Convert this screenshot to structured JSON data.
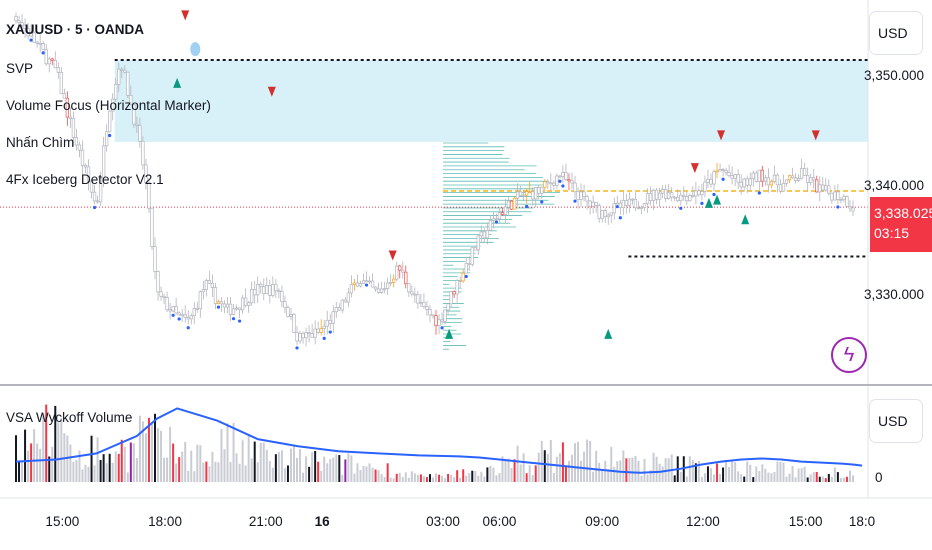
{
  "legend": {
    "symbol": "XAUUSD · 5 · OANDA",
    "indicators": [
      "SVP",
      "Volume Focus (Horizontal Marker)",
      "Nhấn Chìm",
      "4Fx Iceberg Detector V2.1"
    ]
  },
  "price_axis": {
    "currency": "USD",
    "current_price": "3,338.025",
    "countdown": "03:15"
  },
  "volume_pane": {
    "title": "VSA Wyckoff Volume",
    "currency": "USD",
    "zero_label": "0"
  },
  "colors": {
    "up": "#26a69a",
    "down": "#ef5350",
    "candle": "#b2b5be",
    "zone": "#d8f1f8",
    "poc": "#f2b320",
    "vol_ma": "#2962ff",
    "bar_red": "#f23645",
    "bar_purple": "#8e24aa",
    "bar_black": "#131722",
    "bar_grey": "#c9ccd3"
  },
  "chart_data": [
    {
      "type": "candlestick",
      "symbol": "XAUUSD",
      "timeframe": "5",
      "source": "OANDA",
      "ylim": [
        3322,
        3357
      ],
      "x_ticks": [
        "15:00",
        "18:00",
        "21:00",
        "16",
        "03:00",
        "06:00",
        "09:00",
        "12:00",
        "15:00",
        "18:0"
      ],
      "y_ticks": [
        "3,330.000",
        "3,340.000",
        "3,350.000"
      ],
      "y_tick_values": [
        3330,
        3340,
        3350
      ],
      "path_x": [
        0.0,
        1.0,
        1.4,
        2.0,
        2.3,
        2.6,
        3.0,
        3.2,
        3.5,
        4.0,
        4.3,
        4.7,
        5.2,
        5.5,
        6.0,
        6.5,
        6.8,
        7.0,
        7.5,
        8.0,
        8.5,
        9.0,
        9.5,
        10.0,
        10.5,
        11.0,
        11.5,
        12.0,
        12.5,
        13.0,
        13.5,
        14.0,
        14.5,
        15.0,
        15.5,
        16.0,
        16.5,
        17.0,
        17.5,
        18.0,
        18.5,
        19.0,
        19.5,
        20.0,
        20.5,
        20.8
      ],
      "path_price": [
        3355.5,
        3350.5,
        3345.0,
        3338.0,
        3347.0,
        3351.5,
        3345.0,
        3341.0,
        3330.0,
        3328.0,
        3327.5,
        3331.0,
        3328.5,
        3329.0,
        3330.5,
        3330.5,
        3328.0,
        3326.0,
        3326.5,
        3328.5,
        3331.5,
        3330.0,
        3332.5,
        3329.0,
        3327.5,
        3331.5,
        3335.0,
        3337.5,
        3339.0,
        3339.5,
        3341.0,
        3339.0,
        3337.5,
        3338.0,
        3338.5,
        3339.5,
        3339.0,
        3339.5,
        3341.5,
        3340.0,
        3341.0,
        3340.0,
        3341.0,
        3339.5,
        3339.0,
        3338.0
      ],
      "current_price": 3338.025,
      "supply_zone": {
        "from_x": 2.45,
        "to_x": 21.2,
        "low": 3344.0,
        "high": 3351.5
      },
      "resistance_line": {
        "price": 3351.5,
        "from_x": 2.45,
        "to_x": 21.2
      },
      "support_line": {
        "price": 3333.5,
        "from_x": 15.2,
        "to_x": 21.2
      },
      "poc_line": {
        "price": 3339.5,
        "from_x": 10.6,
        "to_x": 21.2
      },
      "volume_profile_start_x": 10.6,
      "down_markers": [
        {
          "x": 4.2,
          "price": 3355.5
        },
        {
          "x": 6.35,
          "price": 3348.5
        },
        {
          "x": 9.35,
          "price": 3333.5
        },
        {
          "x": 16.85,
          "price": 3341.5
        },
        {
          "x": 17.5,
          "price": 3344.5
        },
        {
          "x": 19.85,
          "price": 3344.5
        }
      ],
      "up_markers": [
        {
          "x": 4.0,
          "price": 3349.5
        },
        {
          "x": 10.75,
          "price": 3326.5
        },
        {
          "x": 14.7,
          "price": 3326.5
        },
        {
          "x": 17.2,
          "price": 3338.5
        },
        {
          "x": 17.4,
          "price": 3338.8
        },
        {
          "x": 18.1,
          "price": 3337.0
        }
      ]
    },
    {
      "type": "bar",
      "title": "VSA Wyckoff Volume",
      "series": [
        {
          "values": [
            35,
            55,
            38,
            30,
            28,
            30,
            45,
            32,
            30,
            25,
            35,
            28,
            26,
            22,
            20,
            18,
            17,
            15,
            12,
            8,
            5,
            5,
            8,
            12,
            16,
            22,
            25,
            28,
            28,
            22,
            20,
            18,
            17,
            16,
            15,
            14,
            13,
            12,
            12,
            11,
            10,
            10,
            11
          ]
        }
      ],
      "moving_average": [
        20,
        22,
        28,
        45,
        62,
        72,
        60,
        42,
        35,
        30,
        28,
        26,
        25,
        24,
        22,
        20,
        18,
        16,
        14,
        12,
        10,
        9,
        10,
        13,
        17,
        20,
        22,
        23,
        22,
        20,
        19,
        18,
        17,
        16,
        15,
        14,
        13,
        12,
        12,
        11,
        11,
        10,
        10
      ],
      "ma_x": [
        0,
        1,
        2,
        3,
        3.5,
        4.0,
        5,
        6,
        7,
        8,
        9,
        10,
        11,
        11.5,
        12,
        12.5,
        13,
        13.5,
        14,
        14.5,
        15,
        15.5,
        16,
        16.5,
        17,
        17.5,
        18,
        18.5,
        19,
        19.5,
        20,
        20.5,
        20.8,
        21,
        21,
        21,
        21,
        21,
        21,
        21,
        21,
        21,
        21
      ]
    }
  ]
}
